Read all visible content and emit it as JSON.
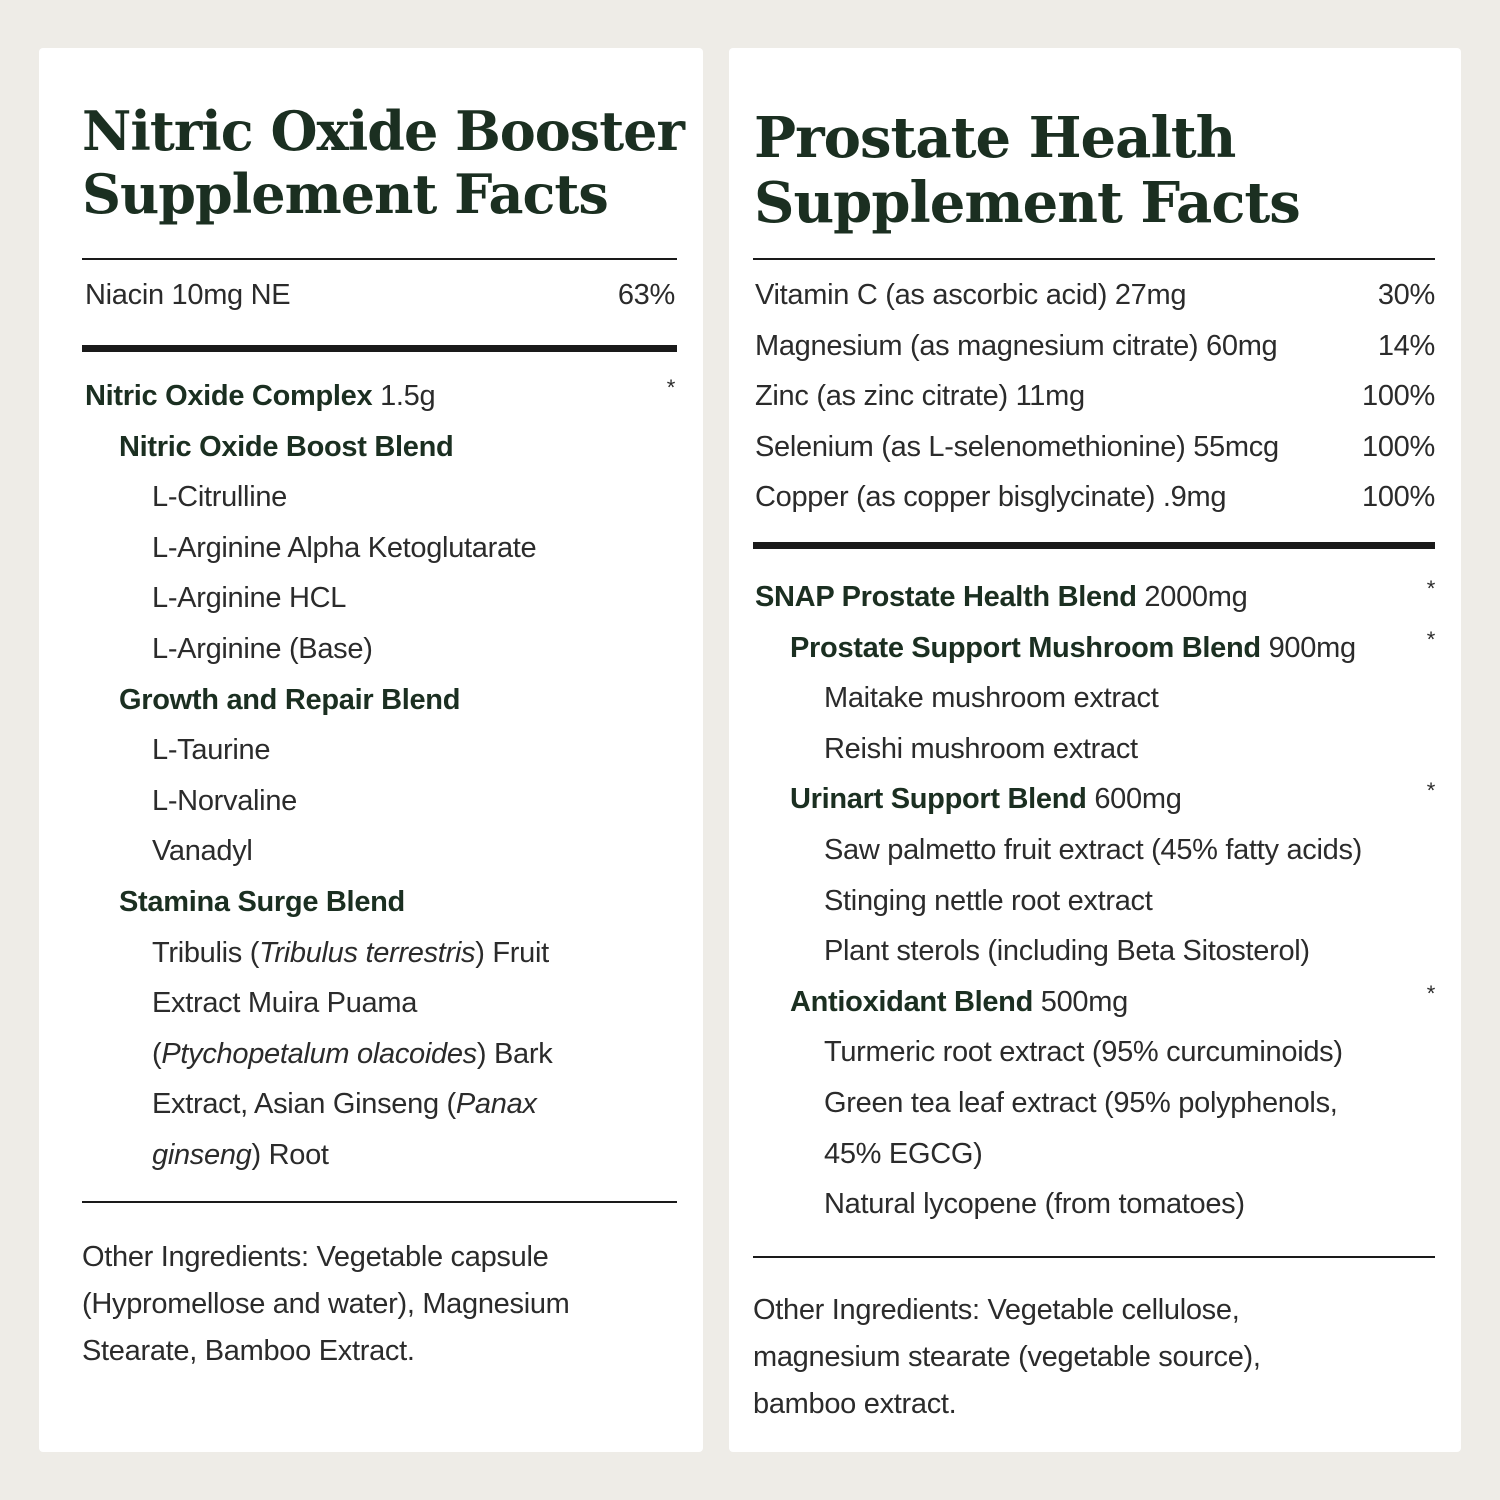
{
  "background_color": "#eeece7",
  "heading_color": "#1b2f21",
  "left": {
    "title_lines": [
      "Nitric Oxide Booster",
      "Supplement Facts"
    ],
    "vitamins": [
      {
        "segs": [
          {
            "text": "Niacin 10mg NE",
            "style": "n"
          }
        ],
        "right": "63%"
      }
    ],
    "rows": [
      {
        "level": 0,
        "star": "*",
        "segs": [
          {
            "text": "Nitric Oxide Complex",
            "style": "b"
          },
          {
            "text": " 1.5g",
            "style": "n"
          }
        ]
      },
      {
        "level": 1,
        "segs": [
          {
            "text": "Nitric Oxide Boost Blend",
            "style": "b"
          }
        ]
      },
      {
        "level": 2,
        "segs": [
          {
            "text": "L-Citrulline",
            "style": "n"
          }
        ]
      },
      {
        "level": 2,
        "segs": [
          {
            "text": "L-Arginine Alpha Ketoglutarate",
            "style": "n"
          }
        ]
      },
      {
        "level": 2,
        "segs": [
          {
            "text": "L-Arginine HCL",
            "style": "n"
          }
        ]
      },
      {
        "level": 2,
        "segs": [
          {
            "text": "L-Arginine (Base)",
            "style": "n"
          }
        ]
      },
      {
        "level": 1,
        "segs": [
          {
            "text": "Growth and Repair Blend",
            "style": "b"
          }
        ]
      },
      {
        "level": 2,
        "segs": [
          {
            "text": "L-Taurine",
            "style": "n"
          }
        ]
      },
      {
        "level": 2,
        "segs": [
          {
            "text": "L-Norvaline",
            "style": "n"
          }
        ]
      },
      {
        "level": 2,
        "segs": [
          {
            "text": "Vanadyl",
            "style": "n"
          }
        ]
      },
      {
        "level": 1,
        "segs": [
          {
            "text": "Stamina Surge Blend",
            "style": "b"
          }
        ]
      },
      {
        "level": 2,
        "segs": [
          {
            "text": "Tribulis (",
            "style": "n"
          },
          {
            "text": "Tribulus terrestris",
            "style": "i"
          },
          {
            "text": ") Fruit",
            "style": "n"
          }
        ]
      },
      {
        "level": 2,
        "segs": [
          {
            "text": "Extract Muira Puama",
            "style": "n"
          }
        ]
      },
      {
        "level": 2,
        "segs": [
          {
            "text": "(",
            "style": "n"
          },
          {
            "text": "Ptychopetalum olacoides",
            "style": "i"
          },
          {
            "text": ") Bark",
            "style": "n"
          }
        ]
      },
      {
        "level": 2,
        "segs": [
          {
            "text": "Extract, Asian Ginseng (",
            "style": "n"
          },
          {
            "text": "Panax",
            "style": "i"
          }
        ]
      },
      {
        "level": 2,
        "segs": [
          {
            "text": "ginseng",
            "style": "i"
          },
          {
            "text": ") Root",
            "style": "n"
          }
        ]
      }
    ],
    "other_ingredients_lines": [
      "Other Ingredients: Vegetable capsule",
      "(Hypromellose and water), Magnesium",
      "Stearate, Bamboo Extract."
    ]
  },
  "right": {
    "title_lines": [
      "Prostate Health",
      "Supplement Facts"
    ],
    "vitamins": [
      {
        "segs": [
          {
            "text": "Vitamin C (as ascorbic acid) 27mg",
            "style": "n"
          }
        ],
        "right": "30%"
      },
      {
        "segs": [
          {
            "text": "Magnesium (as magnesium citrate) 60mg",
            "style": "n"
          }
        ],
        "right": "14%"
      },
      {
        "segs": [
          {
            "text": "Zinc (as zinc citrate) 11mg",
            "style": "n"
          }
        ],
        "right": "100%"
      },
      {
        "segs": [
          {
            "text": "Selenium (as L-selenomethionine) 55mcg",
            "style": "n"
          }
        ],
        "right": "100%"
      },
      {
        "segs": [
          {
            "text": "Copper (as copper bisglycinate) .9mg",
            "style": "n"
          }
        ],
        "right": "100%"
      }
    ],
    "rows": [
      {
        "level": 0,
        "star": "*",
        "segs": [
          {
            "text": "SNAP Prostate Health Blend",
            "style": "b"
          },
          {
            "text": " 2000mg",
            "style": "n"
          }
        ]
      },
      {
        "level": 1,
        "star": "*",
        "segs": [
          {
            "text": "Prostate Support Mushroom Blend",
            "style": "b"
          },
          {
            "text": " 900mg",
            "style": "n"
          }
        ]
      },
      {
        "level": 2,
        "segs": [
          {
            "text": "Maitake mushroom extract",
            "style": "n"
          }
        ]
      },
      {
        "level": 2,
        "segs": [
          {
            "text": "Reishi mushroom extract",
            "style": "n"
          }
        ]
      },
      {
        "level": 1,
        "star": "*",
        "segs": [
          {
            "text": "Urinart Support Blend",
            "style": "b"
          },
          {
            "text": " 600mg",
            "style": "n"
          }
        ]
      },
      {
        "level": 2,
        "segs": [
          {
            "text": "Saw palmetto fruit extract (45% fatty acids)",
            "style": "n"
          }
        ]
      },
      {
        "level": 2,
        "segs": [
          {
            "text": "Stinging nettle root extract",
            "style": "n"
          }
        ]
      },
      {
        "level": 2,
        "segs": [
          {
            "text": "Plant sterols (including Beta Sitosterol)",
            "style": "n"
          }
        ]
      },
      {
        "level": 1,
        "star": "*",
        "segs": [
          {
            "text": "Antioxidant Blend",
            "style": "b"
          },
          {
            "text": " 500mg",
            "style": "n"
          }
        ]
      },
      {
        "level": 2,
        "segs": [
          {
            "text": "Turmeric root extract (95% curcuminoids)",
            "style": "n"
          }
        ]
      },
      {
        "level": 2,
        "segs": [
          {
            "text": "Green tea leaf extract (95% polyphenols,",
            "style": "n"
          }
        ]
      },
      {
        "level": 2,
        "segs": [
          {
            "text": "45% EGCG)",
            "style": "n"
          }
        ]
      },
      {
        "level": 2,
        "segs": [
          {
            "text": "Natural lycopene (from tomatoes)",
            "style": "n"
          }
        ]
      }
    ],
    "other_ingredients_lines": [
      "Other Ingredients: Vegetable cellulose,",
      "magnesium stearate (vegetable source),",
      "bamboo extract."
    ]
  }
}
